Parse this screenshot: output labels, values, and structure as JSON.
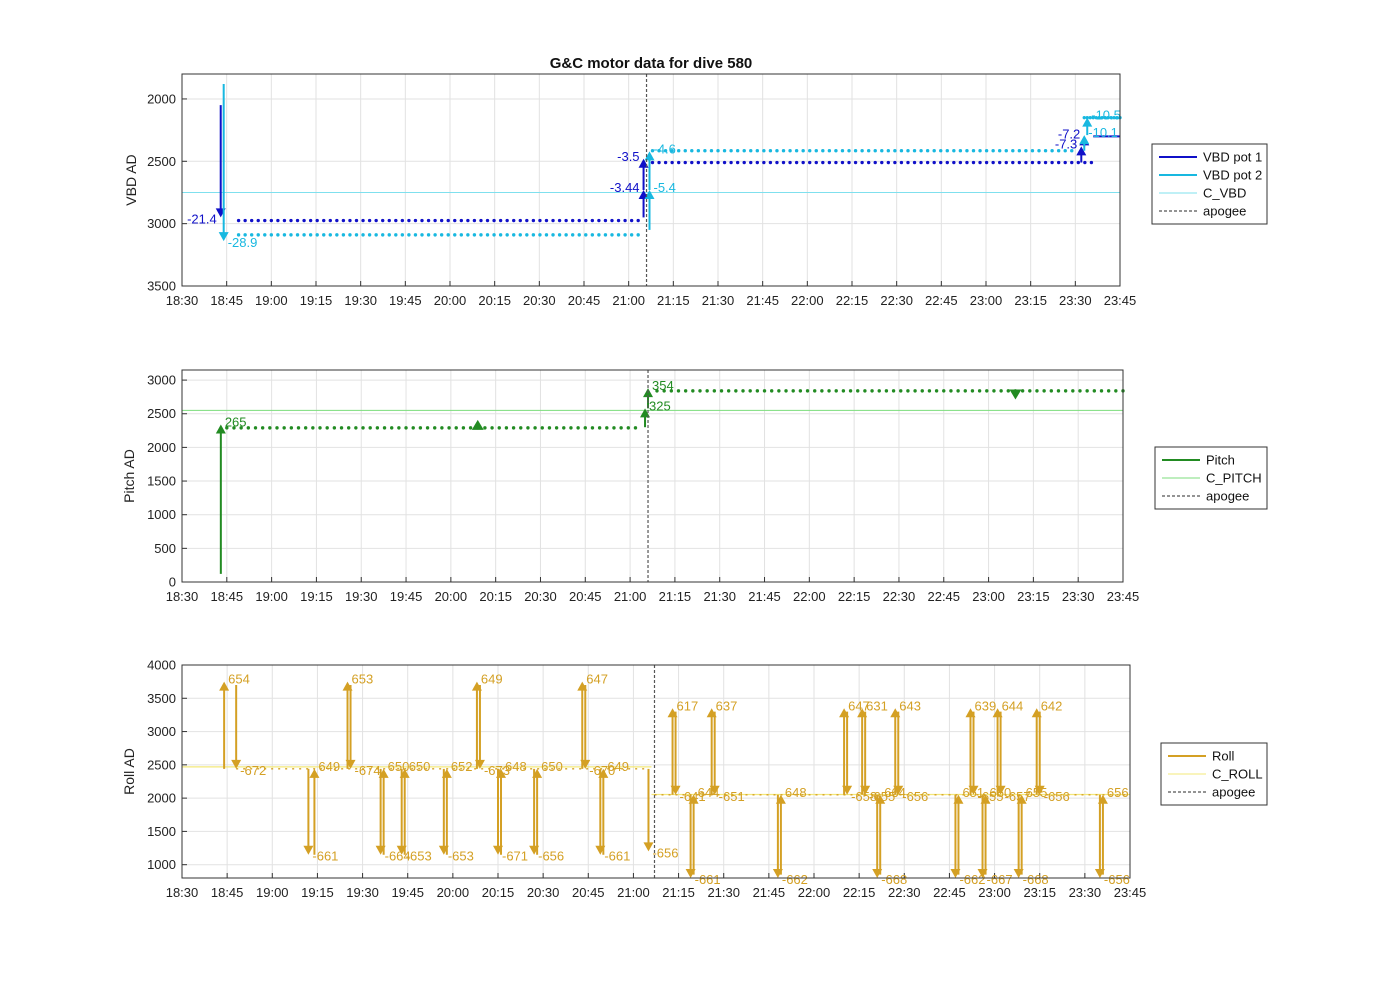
{
  "figure_title": "G&C motor data for dive 580",
  "x_tick_labels": [
    "18:30",
    "18:45",
    "19:00",
    "19:15",
    "19:30",
    "19:45",
    "20:00",
    "20:15",
    "20:30",
    "20:45",
    "21:00",
    "21:15",
    "21:30",
    "21:45",
    "22:00",
    "22:15",
    "22:30",
    "22:45",
    "23:00",
    "23:15",
    "23:30",
    "23:45"
  ],
  "colors": {
    "vbd_pot1": "#1010c8",
    "vbd_pot2": "#18b8e0",
    "c_vbd": "#7fe0ee",
    "pitch": "#228b22",
    "c_pitch": "#7cdd7c",
    "roll": "#d4a024",
    "c_roll": "#f3e87a",
    "apogee": "#555555",
    "grid": "#e2e2e2"
  },
  "chart_data": [
    {
      "type": "line",
      "panel": "vbd",
      "title": "G&C motor data for dive 580",
      "xlabel": "",
      "ylabel": "VBD AD",
      "x_unit": "minutes since 18:30",
      "xlim": [
        0,
        315
      ],
      "ylim": [
        3500,
        1800
      ],
      "y_reversed": true,
      "yticks": [
        2000,
        2500,
        3000,
        3500
      ],
      "grid": true,
      "legend": [
        "VBD pot 1",
        "VBD pot 2",
        "C_VBD",
        "apogee"
      ],
      "legend_position": "outside-right",
      "reference_line": {
        "name": "C_VBD",
        "y": 2750
      },
      "apogee_x": 156,
      "series": [
        {
          "name": "VBD pot 1",
          "x_range": [
            19,
            154
          ],
          "y": 2975,
          "x_range2": [
            158,
            306
          ],
          "y2": 2510
        },
        {
          "name": "VBD pot 2",
          "x_range": [
            19,
            154
          ],
          "y": 3090,
          "x_range2": [
            158,
            300
          ],
          "y2": 2415,
          "x_range3": [
            303,
            315
          ],
          "y3": 2150
        }
      ],
      "arrows": [
        {
          "series": 1,
          "x": 13,
          "y_start": 2050,
          "y_end": 2950,
          "label": "-21.4"
        },
        {
          "series": 2,
          "x": 14,
          "y_start": 1880,
          "y_end": 3140,
          "label": "-28.9"
        },
        {
          "series": 1,
          "x": 155,
          "y_start": 2950,
          "y_end": 2730,
          "label": "-3.44"
        },
        {
          "series": 1,
          "x": 155,
          "y_start": 2730,
          "y_end": 2480,
          "label": "-3.5"
        },
        {
          "series": 2,
          "x": 157,
          "y_start": 3050,
          "y_end": 2730,
          "label": "-5.4"
        },
        {
          "series": 2,
          "x": 157,
          "y_start": 2730,
          "y_end": 2420,
          "label": "-4.6"
        },
        {
          "series": 1,
          "x": 302,
          "y_start": 2510,
          "y_end": 2380,
          "label": "-7.3"
        },
        {
          "series": 1,
          "x": 303,
          "y_start": 2380,
          "y_end": 2300,
          "label": "-7.2"
        },
        {
          "series": 2,
          "x": 303,
          "y_start": 2415,
          "y_end": 2290,
          "label": "-10.1"
        },
        {
          "series": 2,
          "x": 304,
          "y_start": 2290,
          "y_end": 2150,
          "label": "-10.5"
        }
      ]
    },
    {
      "type": "line",
      "panel": "pitch",
      "xlabel": "",
      "ylabel": "Pitch AD",
      "x_unit": "minutes since 18:30",
      "xlim": [
        0,
        315
      ],
      "ylim": [
        0,
        3150
      ],
      "yticks": [
        0,
        500,
        1000,
        1500,
        2000,
        2500,
        3000
      ],
      "grid": true,
      "legend": [
        "Pitch",
        "C_PITCH",
        "apogee"
      ],
      "legend_position": "outside-right",
      "reference_line": {
        "name": "C_PITCH",
        "y": 2550
      },
      "apogee_x": 156,
      "series": [
        {
          "name": "Pitch",
          "x_range": [
            15,
            153
          ],
          "y": 2290,
          "x_range2": [
            159,
            315
          ],
          "y2": 2840
        }
      ],
      "arrows": [
        {
          "x": 13,
          "y_start": 120,
          "y_end": 2340,
          "label": "265"
        },
        {
          "x": 155,
          "y_start": 2300,
          "y_end": 2580,
          "label": "325"
        },
        {
          "x": 156,
          "y_start": 2580,
          "y_end": 2880,
          "label": "354"
        }
      ],
      "markers": [
        {
          "x": 99,
          "y": 2320,
          "shape": "up"
        },
        {
          "x": 279,
          "y": 2800,
          "shape": "down"
        }
      ]
    },
    {
      "type": "line",
      "panel": "roll",
      "xlabel": "",
      "ylabel": "Roll AD",
      "x_unit": "minutes since 18:30",
      "xlim": [
        0,
        315
      ],
      "ylim": [
        800,
        4000
      ],
      "yticks": [
        1000,
        1500,
        2000,
        2500,
        3000,
        3500,
        4000
      ],
      "grid": true,
      "legend": [
        "Roll",
        "C_ROLL",
        "apogee"
      ],
      "legend_position": "outside-right",
      "reference_line_1": {
        "name": "C_ROLL",
        "x_range": [
          0,
          156
        ],
        "y": 2470
      },
      "reference_line_2": {
        "name": "C_ROLL",
        "x_range": [
          156,
          315
        ],
        "y": 2055
      },
      "apogee_x": 157,
      "baseline_1": {
        "x_range": [
          18,
          155
        ],
        "y": 2440
      },
      "baseline_2": {
        "x_range": [
          157,
          315
        ],
        "y": 2050
      },
      "arrows": [
        {
          "x": 14,
          "y_start": 2440,
          "y_end": 3750,
          "label": "654"
        },
        {
          "x": 18,
          "y_start": 3700,
          "y_end": 2440,
          "label": "-672"
        },
        {
          "x": 42,
          "y_start": 2440,
          "y_end": 1150,
          "label": "-661"
        },
        {
          "x": 44,
          "y_start": 1150,
          "y_end": 2440,
          "label": "649"
        },
        {
          "x": 55,
          "y_start": 2440,
          "y_end": 3750,
          "label": "653"
        },
        {
          "x": 56,
          "y_start": 3700,
          "y_end": 2440,
          "label": "-674"
        },
        {
          "x": 66,
          "y_start": 2440,
          "y_end": 1150,
          "label": "-664"
        },
        {
          "x": 67,
          "y_start": 1150,
          "y_end": 2440,
          "label": "650"
        },
        {
          "x": 73,
          "y_start": 2440,
          "y_end": 1150,
          "label": "-653"
        },
        {
          "x": 74,
          "y_start": 1150,
          "y_end": 2440,
          "label": "650"
        },
        {
          "x": 87,
          "y_start": 2440,
          "y_end": 1150,
          "label": "-653"
        },
        {
          "x": 88,
          "y_start": 1150,
          "y_end": 2440,
          "label": "652"
        },
        {
          "x": 98,
          "y_start": 2440,
          "y_end": 3750,
          "label": "649"
        },
        {
          "x": 99,
          "y_start": 3700,
          "y_end": 2440,
          "label": "-673"
        },
        {
          "x": 105,
          "y_start": 2440,
          "y_end": 1150,
          "label": "-671"
        },
        {
          "x": 106,
          "y_start": 1150,
          "y_end": 2440,
          "label": "648"
        },
        {
          "x": 117,
          "y_start": 2440,
          "y_end": 1150,
          "label": "-656"
        },
        {
          "x": 118,
          "y_start": 1150,
          "y_end": 2440,
          "label": "650"
        },
        {
          "x": 133,
          "y_start": 2440,
          "y_end": 3750,
          "label": "647"
        },
        {
          "x": 134,
          "y_start": 3700,
          "y_end": 2440,
          "label": "-670"
        },
        {
          "x": 139,
          "y_start": 2440,
          "y_end": 1150,
          "label": "-661"
        },
        {
          "x": 140,
          "y_start": 1150,
          "y_end": 2440,
          "label": "649"
        },
        {
          "x": 155,
          "y_start": 2440,
          "y_end": 1200,
          "label": "-656"
        },
        {
          "x": 163,
          "y_start": 2050,
          "y_end": 3350,
          "label": "617"
        },
        {
          "x": 164,
          "y_start": 3300,
          "y_end": 2050,
          "label": "-641"
        },
        {
          "x": 169,
          "y_start": 2050,
          "y_end": 800,
          "label": "-661"
        },
        {
          "x": 170,
          "y_start": 850,
          "y_end": 2050,
          "label": "644"
        },
        {
          "x": 176,
          "y_start": 2050,
          "y_end": 3350,
          "label": "637"
        },
        {
          "x": 177,
          "y_start": 3300,
          "y_end": 2050,
          "label": "-651"
        },
        {
          "x": 198,
          "y_start": 2050,
          "y_end": 800,
          "label": "-662"
        },
        {
          "x": 199,
          "y_start": 850,
          "y_end": 2050,
          "label": "648"
        },
        {
          "x": 220,
          "y_start": 2050,
          "y_end": 3350,
          "label": "647"
        },
        {
          "x": 221,
          "y_start": 3300,
          "y_end": 2050,
          "label": "-658"
        },
        {
          "x": 226,
          "y_start": 2050,
          "y_end": 3350,
          "label": "631"
        },
        {
          "x": 227,
          "y_start": 3300,
          "y_end": 2050,
          "label": "-655"
        },
        {
          "x": 231,
          "y_start": 2050,
          "y_end": 800,
          "label": "-668"
        },
        {
          "x": 232,
          "y_start": 850,
          "y_end": 2050,
          "label": "664"
        },
        {
          "x": 237,
          "y_start": 2050,
          "y_end": 3350,
          "label": "643"
        },
        {
          "x": 238,
          "y_start": 3300,
          "y_end": 2050,
          "label": "-656"
        },
        {
          "x": 257,
          "y_start": 2050,
          "y_end": 800,
          "label": "-662"
        },
        {
          "x": 258,
          "y_start": 850,
          "y_end": 2050,
          "label": "651"
        },
        {
          "x": 262,
          "y_start": 2050,
          "y_end": 3350,
          "label": "639"
        },
        {
          "x": 263,
          "y_start": 3300,
          "y_end": 2050,
          "label": "-655"
        },
        {
          "x": 266,
          "y_start": 2050,
          "y_end": 800,
          "label": "-667"
        },
        {
          "x": 267,
          "y_start": 850,
          "y_end": 2050,
          "label": "660"
        },
        {
          "x": 271,
          "y_start": 2050,
          "y_end": 3350,
          "label": "644"
        },
        {
          "x": 272,
          "y_start": 3300,
          "y_end": 2050,
          "label": "-657"
        },
        {
          "x": 278,
          "y_start": 2050,
          "y_end": 800,
          "label": "-668"
        },
        {
          "x": 279,
          "y_start": 850,
          "y_end": 2050,
          "label": "655"
        },
        {
          "x": 284,
          "y_start": 2050,
          "y_end": 3350,
          "label": "642"
        },
        {
          "x": 285,
          "y_start": 3300,
          "y_end": 2050,
          "label": "-656"
        },
        {
          "x": 305,
          "y_start": 2050,
          "y_end": 800,
          "label": "-656"
        },
        {
          "x": 306,
          "y_start": 850,
          "y_end": 2050,
          "label": "656"
        }
      ]
    }
  ]
}
